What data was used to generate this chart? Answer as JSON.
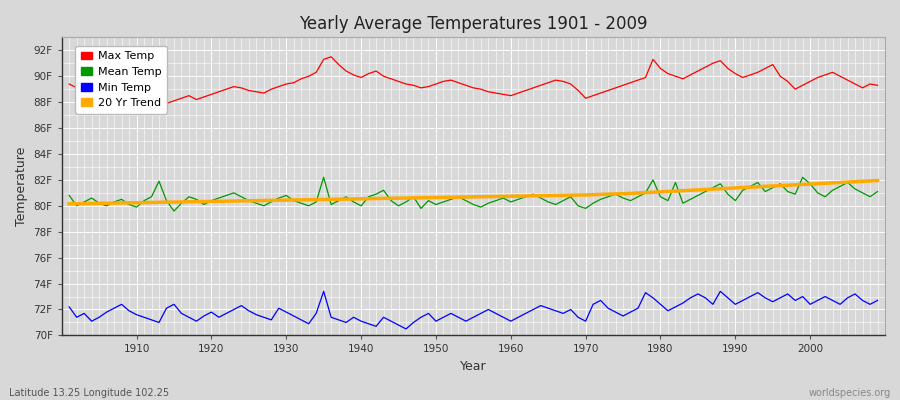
{
  "title": "Yearly Average Temperatures 1901 - 2009",
  "xlabel": "Year",
  "ylabel": "Temperature",
  "lat_lon_label": "Latitude 13.25 Longitude 102.25",
  "credit": "worldspecies.org",
  "year_start": 1901,
  "year_end": 2009,
  "background_color": "#d8d8d8",
  "plot_bg_color": "#d8d8d8",
  "grid_color": "#ffffff",
  "ylim": [
    70,
    93
  ],
  "yticks": [
    70,
    72,
    74,
    76,
    78,
    80,
    82,
    84,
    86,
    88,
    90,
    92
  ],
  "ytick_labels": [
    "70F",
    "72F",
    "74F",
    "76F",
    "78F",
    "80F",
    "82F",
    "84F",
    "86F",
    "88F",
    "90F",
    "92F"
  ],
  "xticks": [
    1910,
    1920,
    1930,
    1940,
    1950,
    1960,
    1970,
    1980,
    1990,
    2000
  ],
  "legend_entries": [
    "Max Temp",
    "Mean Temp",
    "Min Temp",
    "20 Yr Trend"
  ],
  "legend_colors": [
    "#ff0000",
    "#009900",
    "#0000ff",
    "#ffaa00"
  ],
  "line_colors": {
    "max": "#ff0000",
    "mean": "#009900",
    "min": "#0000ff",
    "trend": "#ffaa00"
  },
  "max_temp": [
    89.4,
    89.1,
    89.3,
    89.0,
    88.6,
    88.4,
    88.3,
    88.8,
    88.7,
    88.5,
    88.9,
    88.4,
    88.0,
    87.9,
    88.1,
    88.3,
    88.5,
    88.2,
    88.4,
    88.6,
    88.8,
    89.0,
    89.2,
    89.1,
    88.9,
    88.8,
    88.7,
    89.0,
    89.2,
    89.4,
    89.5,
    89.8,
    90.0,
    90.3,
    91.3,
    91.5,
    90.9,
    90.4,
    90.1,
    89.9,
    90.2,
    90.4,
    90.0,
    89.8,
    89.6,
    89.4,
    89.3,
    89.1,
    89.2,
    89.4,
    89.6,
    89.7,
    89.5,
    89.3,
    89.1,
    89.0,
    88.8,
    88.7,
    88.6,
    88.5,
    88.7,
    88.9,
    89.1,
    89.3,
    89.5,
    89.7,
    89.6,
    89.4,
    88.9,
    88.3,
    88.5,
    88.7,
    88.9,
    89.1,
    89.3,
    89.5,
    89.7,
    89.9,
    91.3,
    90.6,
    90.2,
    90.0,
    89.8,
    90.1,
    90.4,
    90.7,
    91.0,
    91.2,
    90.6,
    90.2,
    89.9,
    90.1,
    90.3,
    90.6,
    90.9,
    90.0,
    89.6,
    89.0,
    89.3,
    89.6,
    89.9,
    90.1,
    90.3,
    90.0,
    89.7,
    89.4,
    89.1,
    89.4,
    89.3
  ],
  "mean_temp": [
    80.8,
    80.0,
    80.3,
    80.6,
    80.2,
    80.0,
    80.3,
    80.5,
    80.1,
    79.9,
    80.4,
    80.7,
    81.9,
    80.4,
    79.6,
    80.2,
    80.7,
    80.5,
    80.1,
    80.4,
    80.6,
    80.8,
    81.0,
    80.7,
    80.4,
    80.2,
    80.0,
    80.3,
    80.6,
    80.8,
    80.4,
    80.2,
    80.0,
    80.3,
    82.2,
    80.1,
    80.4,
    80.7,
    80.3,
    80.0,
    80.7,
    80.9,
    81.2,
    80.4,
    80.0,
    80.3,
    80.7,
    79.8,
    80.4,
    80.1,
    80.3,
    80.5,
    80.7,
    80.4,
    80.1,
    79.9,
    80.2,
    80.4,
    80.6,
    80.3,
    80.5,
    80.7,
    80.9,
    80.6,
    80.3,
    80.1,
    80.4,
    80.7,
    80.0,
    79.8,
    80.2,
    80.5,
    80.7,
    80.9,
    80.6,
    80.4,
    80.7,
    81.0,
    82.0,
    80.7,
    80.4,
    81.8,
    80.2,
    80.5,
    80.8,
    81.1,
    81.4,
    81.7,
    80.9,
    80.4,
    81.2,
    81.5,
    81.8,
    81.1,
    81.4,
    81.7,
    81.1,
    80.9,
    82.2,
    81.7,
    81.0,
    80.7,
    81.2,
    81.5,
    81.8,
    81.3,
    81.0,
    80.7,
    81.1
  ],
  "min_temp": [
    72.2,
    71.4,
    71.7,
    71.1,
    71.4,
    71.8,
    72.1,
    72.4,
    71.9,
    71.6,
    71.4,
    71.2,
    71.0,
    72.1,
    72.4,
    71.7,
    71.4,
    71.1,
    71.5,
    71.8,
    71.4,
    71.7,
    72.0,
    72.3,
    71.9,
    71.6,
    71.4,
    71.2,
    72.1,
    71.8,
    71.5,
    71.2,
    70.9,
    71.7,
    73.4,
    71.4,
    71.2,
    71.0,
    71.4,
    71.1,
    70.9,
    70.7,
    71.4,
    71.1,
    70.8,
    70.5,
    71.0,
    71.4,
    71.7,
    71.1,
    71.4,
    71.7,
    71.4,
    71.1,
    71.4,
    71.7,
    72.0,
    71.7,
    71.4,
    71.1,
    71.4,
    71.7,
    72.0,
    72.3,
    72.1,
    71.9,
    71.7,
    72.0,
    71.4,
    71.1,
    72.4,
    72.7,
    72.1,
    71.8,
    71.5,
    71.8,
    72.1,
    73.3,
    72.9,
    72.4,
    71.9,
    72.2,
    72.5,
    72.9,
    73.2,
    72.9,
    72.4,
    73.4,
    72.9,
    72.4,
    72.7,
    73.0,
    73.3,
    72.9,
    72.6,
    72.9,
    73.2,
    72.7,
    73.0,
    72.4,
    72.7,
    73.0,
    72.7,
    72.4,
    72.9,
    73.2,
    72.7,
    72.4,
    72.7
  ],
  "trend": [
    80.15,
    80.16,
    80.17,
    80.18,
    80.19,
    80.2,
    80.21,
    80.22,
    80.23,
    80.24,
    80.25,
    80.26,
    80.27,
    80.28,
    80.29,
    80.3,
    80.31,
    80.32,
    80.33,
    80.34,
    80.35,
    80.36,
    80.37,
    80.38,
    80.39,
    80.4,
    80.41,
    80.42,
    80.43,
    80.44,
    80.45,
    80.46,
    80.47,
    80.48,
    80.49,
    80.5,
    80.51,
    80.52,
    80.53,
    80.54,
    80.55,
    80.56,
    80.57,
    80.58,
    80.59,
    80.6,
    80.61,
    80.62,
    80.63,
    80.64,
    80.65,
    80.66,
    80.67,
    80.68,
    80.69,
    80.7,
    80.71,
    80.72,
    80.73,
    80.74,
    80.75,
    80.76,
    80.77,
    80.78,
    80.79,
    80.8,
    80.81,
    80.82,
    80.83,
    80.84,
    80.86,
    80.88,
    80.9,
    80.92,
    80.94,
    80.96,
    80.99,
    81.02,
    81.05,
    81.08,
    81.11,
    81.14,
    81.17,
    81.2,
    81.23,
    81.26,
    81.29,
    81.32,
    81.35,
    81.38,
    81.41,
    81.44,
    81.47,
    81.5,
    81.53,
    81.56,
    81.59,
    81.62,
    81.65,
    81.68,
    81.71,
    81.74,
    81.77,
    81.8,
    81.83,
    81.86,
    81.89,
    81.92,
    81.95
  ]
}
